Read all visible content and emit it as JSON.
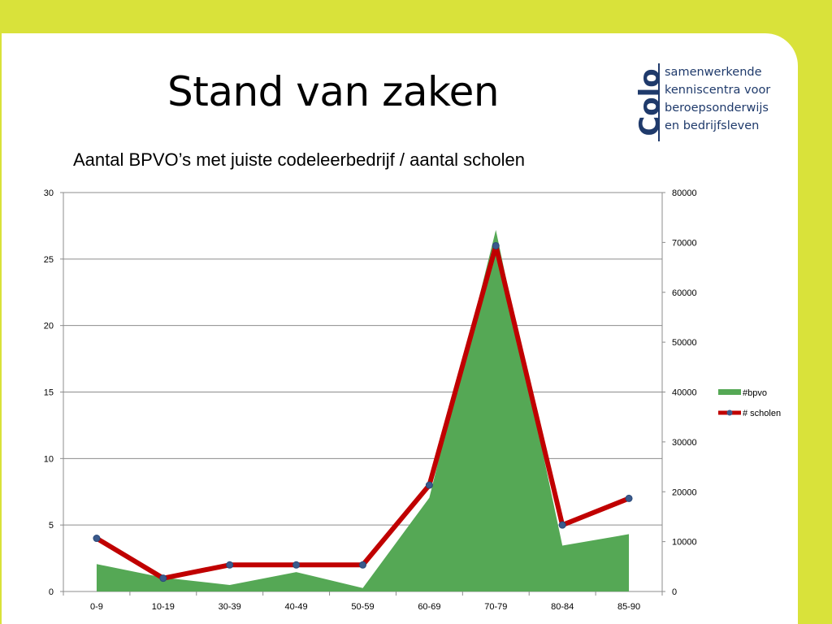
{
  "slide": {
    "title": "Stand van zaken",
    "logo": {
      "mark": "Colo",
      "tagline": [
        "samenwerkende",
        "kenniscentra voor",
        "beroepsonderwijs",
        "en bedrijfsleven"
      ],
      "color": "#1f3a6b"
    },
    "background_accent": "#d9e23a"
  },
  "chart_data": {
    "type": "area",
    "title": "Aantal BPVO’s met juiste codeleerbedrijf / aantal scholen",
    "categories": [
      "0-9",
      "10-19",
      "30-39",
      "40-49",
      "50-59",
      "60-69",
      "70-79",
      "80-84",
      "85-90"
    ],
    "y_left": {
      "ylim": [
        0,
        30
      ],
      "ticks": [
        "0",
        "5",
        "10",
        "15",
        "20",
        "25",
        "30"
      ]
    },
    "y_right": {
      "ylim": [
        0,
        80000
      ],
      "ticks": [
        "0",
        "10000",
        "20000",
        "30000",
        "40000",
        "50000",
        "60000",
        "70000",
        "80000"
      ]
    },
    "series": [
      {
        "name": "#bpvo",
        "kind": "area",
        "axis": "right",
        "color": "#55a855",
        "values": [
          5500,
          2800,
          1300,
          3900,
          700,
          18800,
          72500,
          9200,
          11500
        ]
      },
      {
        "name": "# scholen",
        "kind": "line",
        "axis": "left",
        "color": "#c00000",
        "marker_color": "#3a5a8c",
        "values": [
          4,
          1,
          2,
          2,
          2,
          8,
          26,
          5,
          7
        ]
      }
    ],
    "grid": true,
    "legend": "right"
  }
}
